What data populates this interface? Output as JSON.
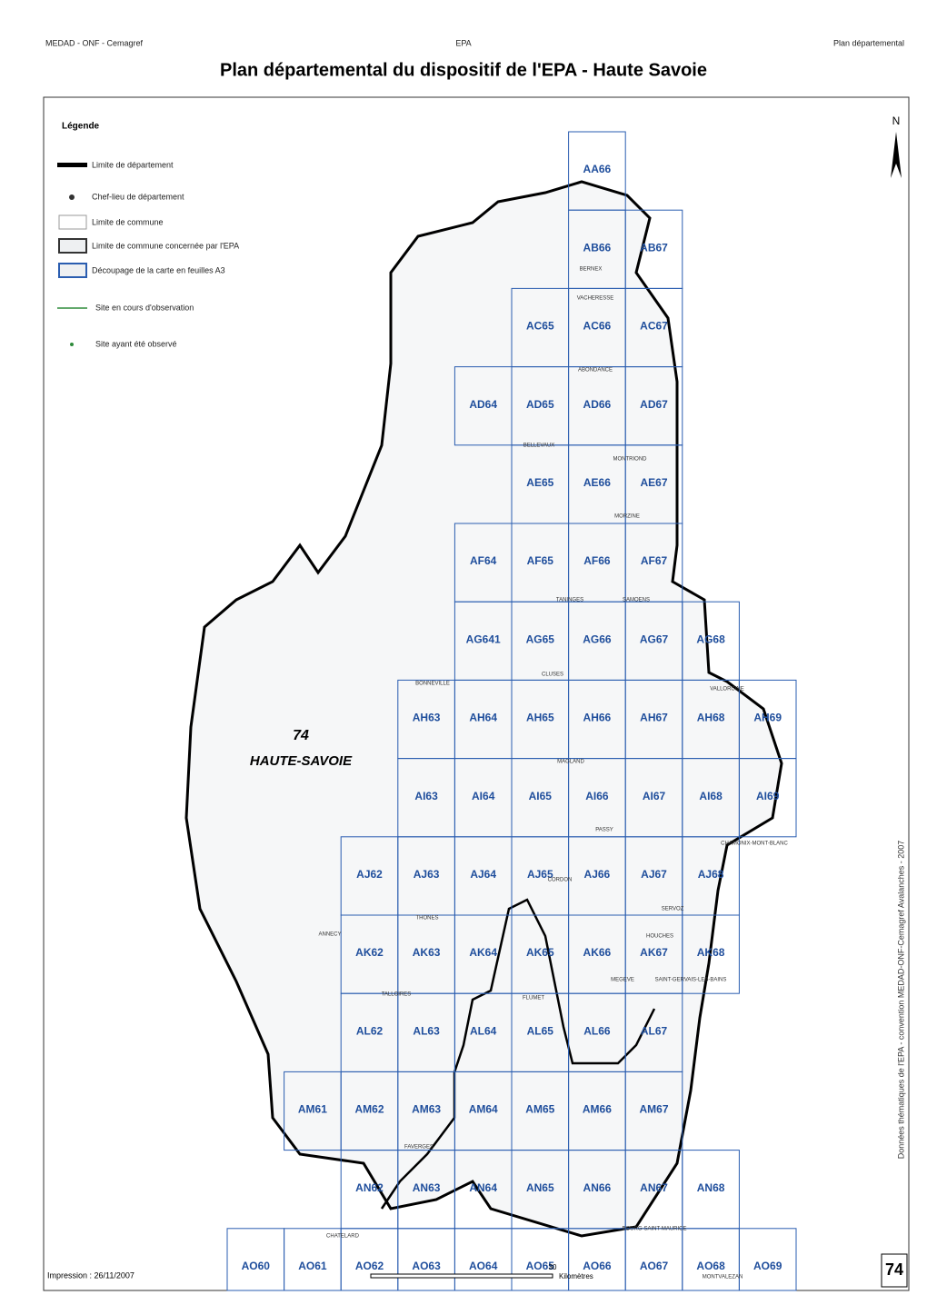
{
  "header": {
    "left": "MEDAD - ONF - Cemagref",
    "center": "EPA",
    "right": "Plan départemental",
    "title": "Plan départemental du dispositif de l'EPA - Haute Savoie"
  },
  "legend": {
    "title": "Légende",
    "items": [
      "Limite de département",
      "Chef-lieu de département",
      "Limite de commune",
      "Limite de commune concernée par l'EPA",
      "Découpage de la carte en feuilles A3",
      "Site en cours d'observation",
      "Site ayant été observé"
    ]
  },
  "map": {
    "north": "N",
    "department_number": "74",
    "department_name": "HAUTE-SAVOIE",
    "rows": [
      [
        "AA66"
      ],
      [
        "AB66",
        "AB67"
      ],
      [
        "AC65",
        "AC66",
        "AC67"
      ],
      [
        "AD64",
        "AD65",
        "AD66",
        "AD67"
      ],
      [
        "AE65",
        "AE66",
        "AE67"
      ],
      [
        "AF64",
        "AF65",
        "AF66",
        "AF67"
      ],
      [
        "AG641",
        "AG65",
        "AG66",
        "AG67",
        "AG68"
      ],
      [
        "AH63",
        "AH64",
        "AH65",
        "AH66",
        "AH67",
        "AH68",
        "AH69"
      ],
      [
        "AI63",
        "AI64",
        "AI65",
        "AI66",
        "AI67",
        "AI68",
        "AI69"
      ],
      [
        "AJ62",
        "AJ63",
        "AJ64",
        "AJ65",
        "AJ66",
        "AJ67",
        "AJ68"
      ],
      [
        "AK62",
        "AK63",
        "AK64",
        "AK65",
        "AK66",
        "AK67",
        "AK68"
      ],
      [
        "AL62",
        "AL63",
        "AL64",
        "AL65",
        "AL66",
        "AL67"
      ],
      [
        "AM61",
        "AM62",
        "AM63",
        "AM64",
        "AM65",
        "AM66",
        "AM67"
      ],
      [
        "AN62",
        "AN63",
        "AN64",
        "AN65",
        "AN66",
        "AN67",
        "AN68"
      ],
      [
        "AO60",
        "AO61",
        "AO62",
        "AO63",
        "AO64",
        "AO65",
        "AO66",
        "AO67",
        "AO68",
        "AO69"
      ]
    ],
    "communes": [
      "VACHERESSE",
      "ABONDANCE",
      "CHAMONIX-MONT-BLANC",
      "VALLORCINE",
      "HOUCHES",
      "SAINT-GERVAIS-LES-BAINS",
      "MEGEVE",
      "CORDON",
      "MAGLAND",
      "PASSY",
      "SERVOZ",
      "ANNECY",
      "FLUMET",
      "TANINGES",
      "SAMOENS",
      "MORZINE",
      "BONNEVILLE",
      "CLUSES",
      "MONTRIOND",
      "BERNEX",
      "BELLEVAUX",
      "FAVERGES",
      "BOURG-SAINT-MAURICE",
      "MONTVALEZAN",
      "TALLOIRES",
      "THONES",
      "CHATELARD"
    ]
  },
  "footer": {
    "print_date": "Impression : 26/11/2007",
    "scale_unit": "Kilomètres",
    "scale_max": "30",
    "side_text": "Données thématiques de l'EPA - convention MEDAD-ONF-Cemagref Avalanches - 2007",
    "page_number": "74"
  }
}
